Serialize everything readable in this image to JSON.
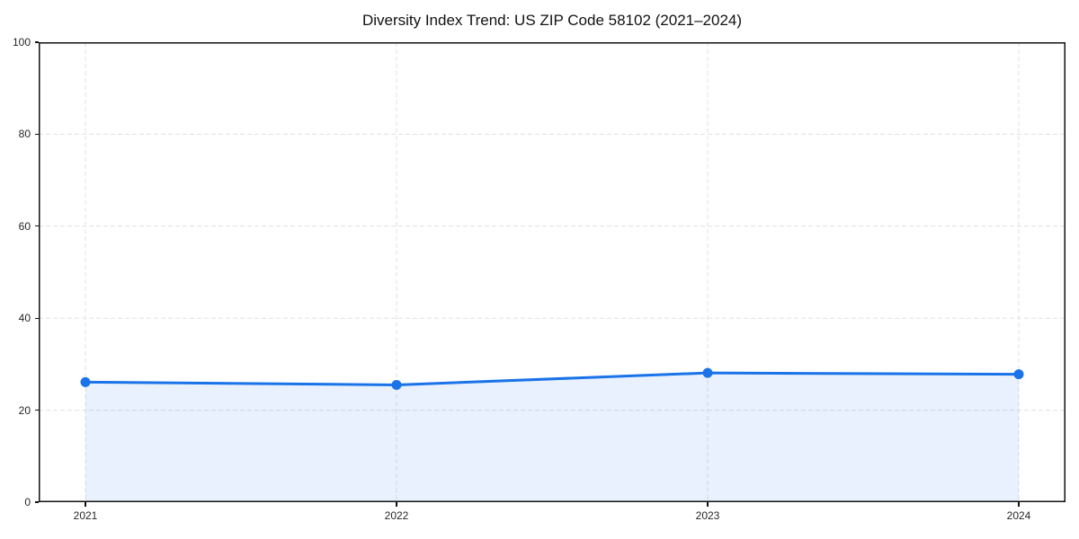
{
  "figure": {
    "background": "#ffffff"
  },
  "chart_data": {
    "type": "area",
    "title": "Diversity Index Trend: US ZIP Code 58102 (2021–2024)",
    "x": [
      "2021",
      "2022",
      "2023",
      "2024"
    ],
    "series": [
      {
        "name": "Diversity Index",
        "values": [
          26.1,
          25.5,
          28.1,
          27.8
        ]
      }
    ],
    "xlabel": "",
    "ylabel": "",
    "ylim": [
      0,
      100
    ],
    "yticks": [
      0,
      20,
      40,
      60,
      80,
      100
    ],
    "grid": true,
    "grid_style": "dashed",
    "legend": "none",
    "marker": "circle",
    "colors": {
      "line": "#1a73e8",
      "marker": "#1a73e8",
      "fill": "#1a73e8",
      "fill_opacity": 0.1,
      "grid": "#e0e0e0",
      "axis": "#111111",
      "text": "#262626"
    }
  }
}
